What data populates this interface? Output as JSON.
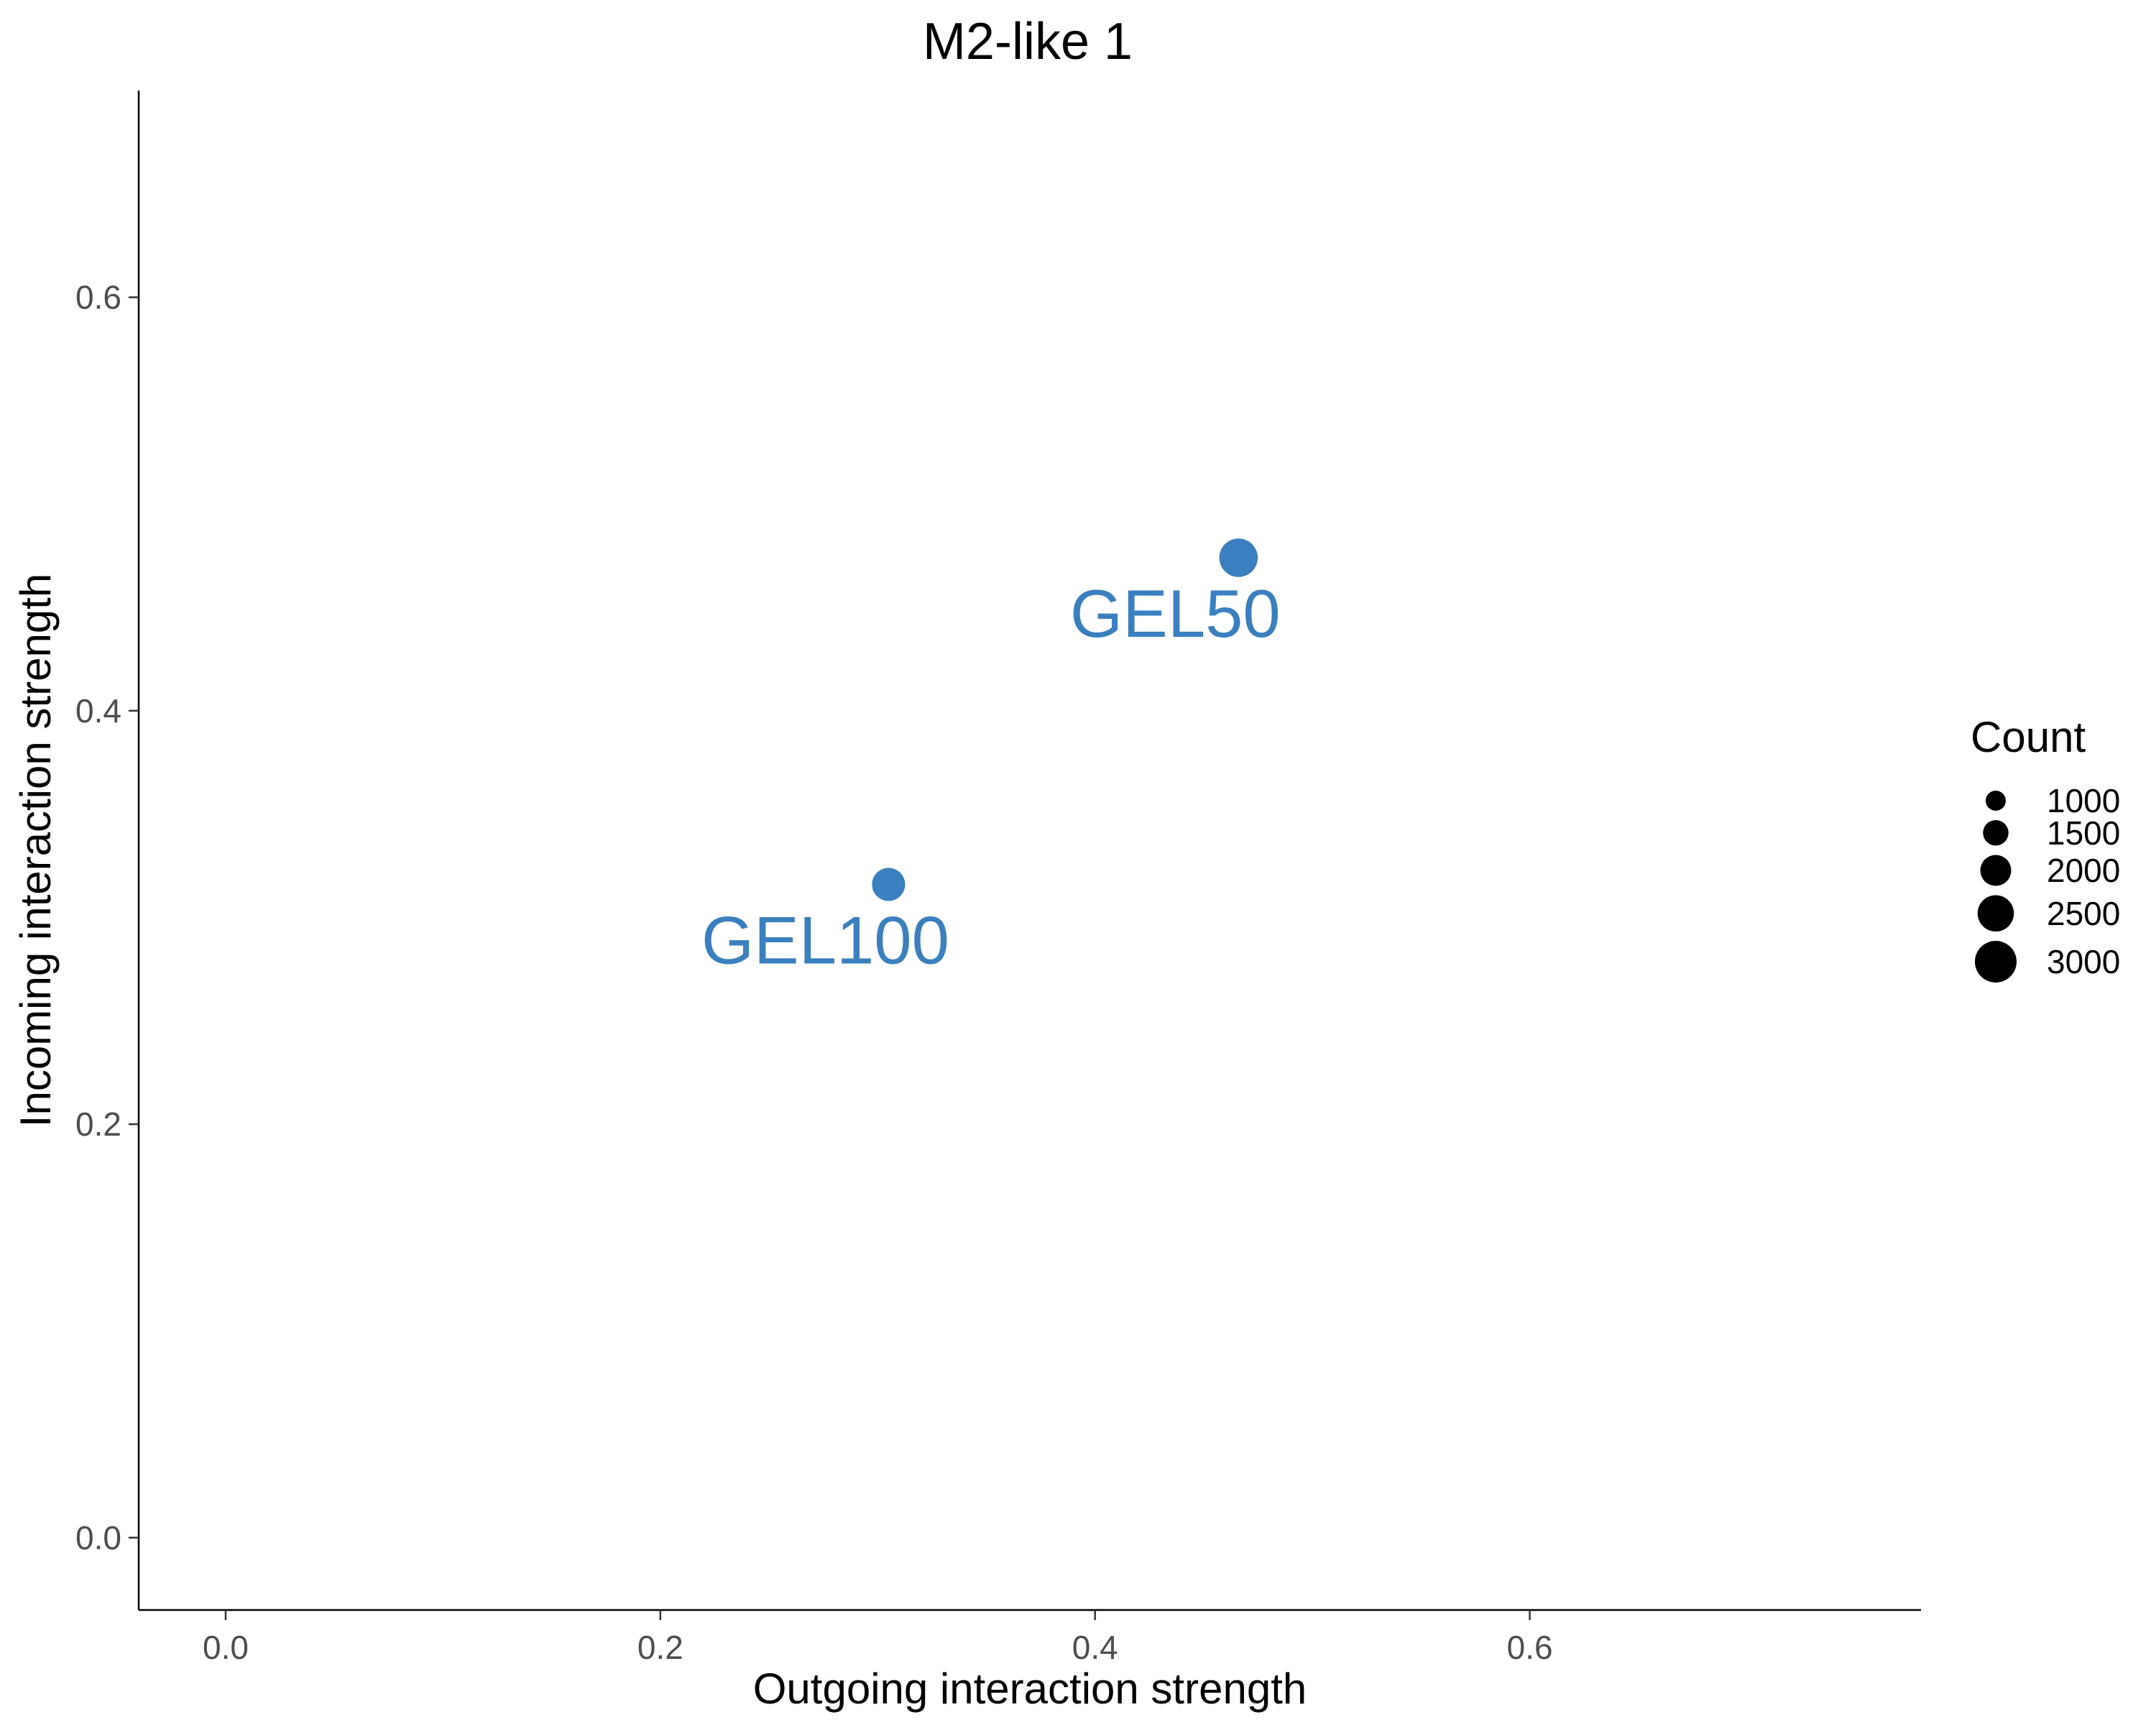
{
  "chart_data": {
    "type": "scatter",
    "title": "M2-like 1",
    "xlabel": "Outgoing interaction strength",
    "ylabel": "Incoming interaction strength",
    "xlim": [
      -0.04,
      0.78
    ],
    "ylim": [
      -0.035,
      0.7
    ],
    "x_ticks": [
      0.0,
      0.2,
      0.4,
      0.6
    ],
    "x_tick_labels": [
      "0.0",
      "0.2",
      "0.4",
      "0.6"
    ],
    "y_ticks": [
      0.0,
      0.2,
      0.4,
      0.6
    ],
    "y_tick_labels": [
      "0.0",
      "0.2",
      "0.4",
      "0.6"
    ],
    "grid": false,
    "point_color": "#3a7fbf",
    "points": [
      {
        "label": "GEL50",
        "x": 0.466,
        "y": 0.474,
        "count": 2700
      },
      {
        "label": "GEL100",
        "x": 0.305,
        "y": 0.316,
        "count": 2200
      }
    ],
    "legend": {
      "title": "Count",
      "placement": "right",
      "entries": [
        {
          "label": "1000",
          "value": 1000
        },
        {
          "label": "1500",
          "value": 1500
        },
        {
          "label": "2000",
          "value": 2000
        },
        {
          "label": "2500",
          "value": 2500
        },
        {
          "label": "3000",
          "value": 3000
        }
      ]
    }
  }
}
